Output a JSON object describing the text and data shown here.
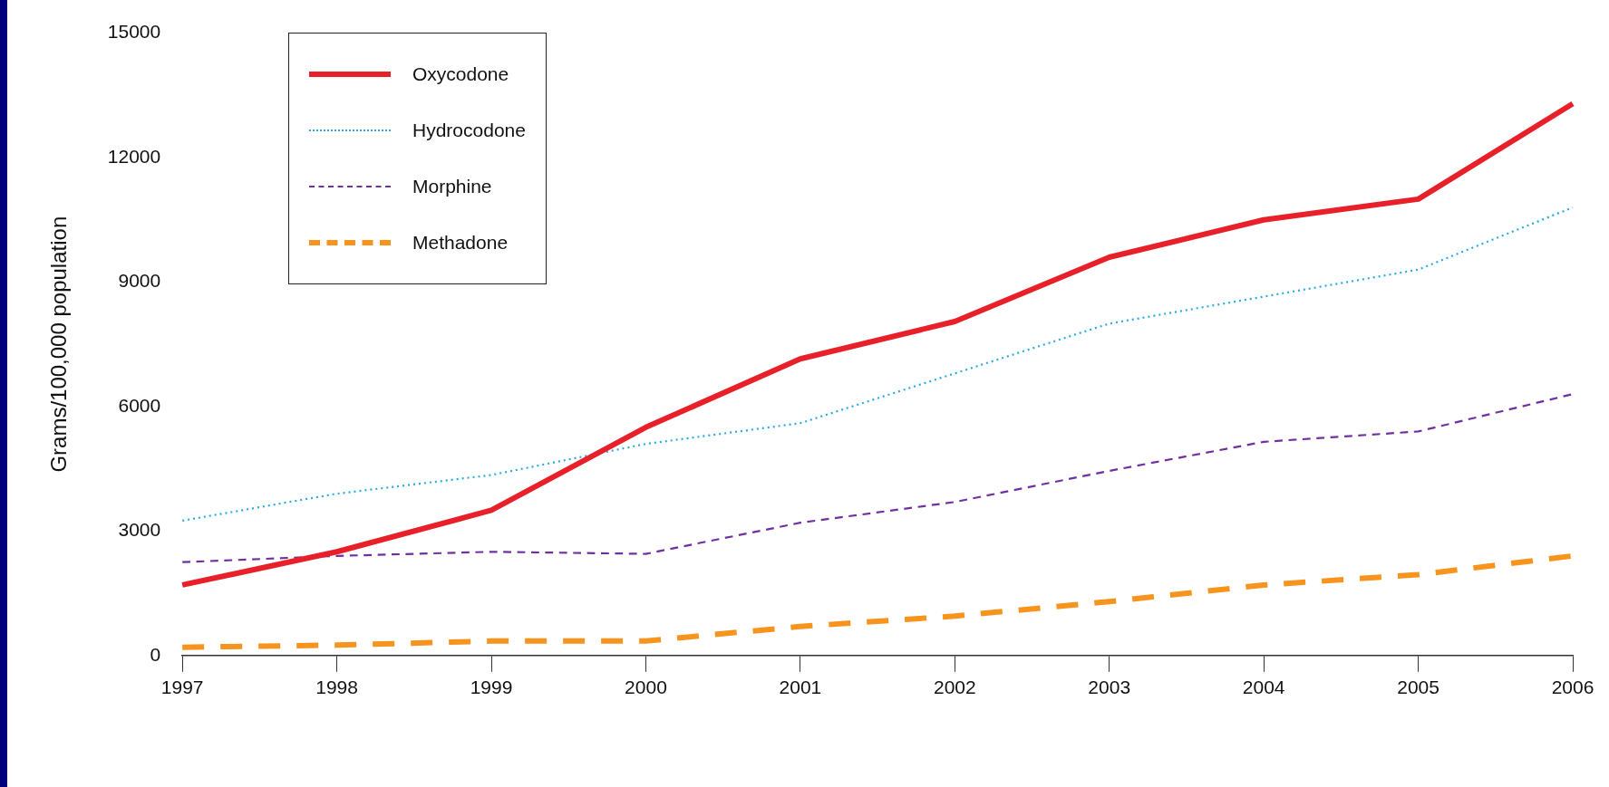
{
  "chart_data": {
    "type": "line",
    "ylabel": "Grams/100,000 population",
    "categories": [
      "1997",
      "1998",
      "1999",
      "2000",
      "2001",
      "2002",
      "2003",
      "2004",
      "2005",
      "2006"
    ],
    "series": [
      {
        "name": "Oxycodone",
        "color": "#e8202a",
        "line_style": "solid",
        "values": [
          1700,
          2500,
          3500,
          5500,
          7150,
          8050,
          9600,
          10500,
          11000,
          13300
        ]
      },
      {
        "name": "Hydrocodone",
        "color": "#29abe2",
        "line_style": "dotted",
        "values": [
          3250,
          3900,
          4350,
          5100,
          5600,
          6800,
          8000,
          8650,
          9300,
          10800
        ]
      },
      {
        "name": "Morphine",
        "color": "#7030a0",
        "line_style": "dashed",
        "values": [
          2250,
          2400,
          2500,
          2450,
          3200,
          3700,
          4450,
          5150,
          5400,
          6300
        ]
      },
      {
        "name": "Methadone",
        "color": "#f7941d",
        "line_style": "dashed",
        "values": [
          200,
          250,
          350,
          350,
          700,
          950,
          1300,
          1700,
          1950,
          2400
        ]
      }
    ],
    "ylim": [
      0,
      15000
    ],
    "yticks": [
      0,
      3000,
      6000,
      9000,
      12000,
      15000
    ],
    "grid": false,
    "legend": "top left",
    "marker": "none"
  }
}
